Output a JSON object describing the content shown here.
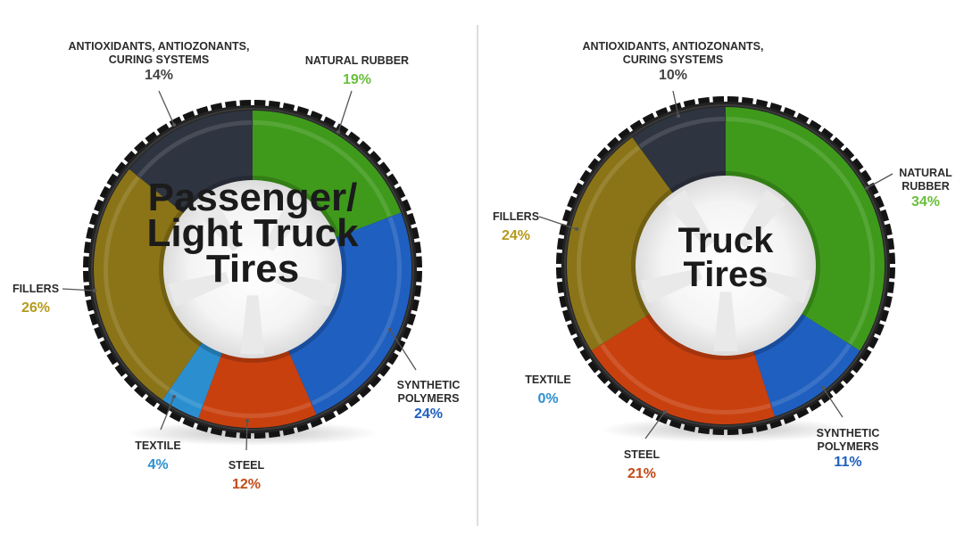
{
  "colors": {
    "natural_rubber": "#3f9a1c",
    "synthetic_polymers": "#1f5fbf",
    "steel": "#c9400f",
    "textile": "#2b8fcf",
    "fillers": "#8a7417",
    "antioxidants": "#2e3440",
    "natural_rubber_text": "#6abf3c",
    "synthetic_text": "#1f4f9f",
    "steel_text": "#c14b17",
    "textile_text": "#2e8fce",
    "fillers_text": "#b59a1b",
    "antioxidants_text": "#444444",
    "tire": "#1e1e1e",
    "divider": "#cfcfcf"
  },
  "chart_data": [
    {
      "type": "pie",
      "title_lines": [
        "Passenger/",
        "Light Truck",
        "Tires"
      ],
      "slices": [
        {
          "key": "natural_rubber",
          "name": "NATURAL RUBBER",
          "value": 19,
          "pct_label": "19%"
        },
        {
          "key": "synthetic_polymers",
          "name_lines": [
            "SYNTHETIC",
            "POLYMERS"
          ],
          "value": 24,
          "pct_label": "24%"
        },
        {
          "key": "steel",
          "name": "STEEL",
          "value": 12,
          "pct_label": "12%"
        },
        {
          "key": "textile",
          "name": "TEXTILE",
          "value": 4,
          "pct_label": "4%"
        },
        {
          "key": "fillers",
          "name": "FILLERS",
          "value": 26,
          "pct_label": "26%"
        },
        {
          "key": "antioxidants",
          "name_lines": [
            "ANTIOXIDANTS, ANTIOZONANTS,",
            "CURING SYSTEMS"
          ],
          "value": 14,
          "pct_label": "14%"
        }
      ]
    },
    {
      "type": "pie",
      "title_lines": [
        "Truck",
        "Tires"
      ],
      "slices": [
        {
          "key": "natural_rubber",
          "name_lines": [
            "NATURAL",
            "RUBBER"
          ],
          "value": 34,
          "pct_label": "34%"
        },
        {
          "key": "synthetic_polymers",
          "name_lines": [
            "SYNTHETIC",
            "POLYMERS"
          ],
          "value": 11,
          "pct_label": "11%"
        },
        {
          "key": "steel",
          "name": "STEEL",
          "value": 21,
          "pct_label": "21%"
        },
        {
          "key": "textile",
          "name": "TEXTILE",
          "value": 0,
          "pct_label": "0%"
        },
        {
          "key": "fillers",
          "name": "FILLERS",
          "value": 24,
          "pct_label": "24%"
        },
        {
          "key": "antioxidants",
          "name_lines": [
            "ANTIOXIDANTS, ANTIOZONANTS,",
            "CURING SYSTEMS"
          ],
          "value": 10,
          "pct_label": "10%"
        }
      ]
    }
  ]
}
